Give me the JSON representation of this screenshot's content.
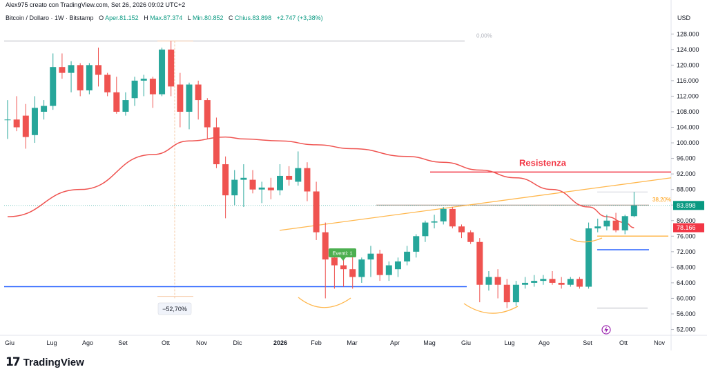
{
  "header": {
    "author_line": "Alex975 creato con TradingView.com, Set 26, 2026 09:02 UTC+2"
  },
  "legend": {
    "symbol": "Bitcoin / Dollaro · 1W · Bitstamp",
    "open_label": "O",
    "open_text": "Aper.81.152",
    "high_label": "H",
    "high_text": "Max.87.374",
    "low_label": "L",
    "low_text": "Min.80.852",
    "close_label": "C",
    "close_text": "Chius.83.898",
    "change_text": "+2.747 (+3,38%)"
  },
  "axis": {
    "currency": "USD"
  },
  "footer": {
    "brand": "TradingView",
    "logo_icon": "tradingview-logo-icon"
  },
  "colors": {
    "up": "#26a69a",
    "down": "#ef5350",
    "ma": "#ef5350",
    "support": "#2962ff",
    "resistance": "#f23645",
    "trendline": "#ffb74d",
    "price_tag": "#089981",
    "ma_tag": "#f23645",
    "event_flag": "#4caf50"
  },
  "annotations": {
    "resistance_label": "Resistenza",
    "drawdown_label": "−52,70%",
    "fib_zero_label": "0,00%",
    "fib_382_label": "38,20%",
    "event_label": "Eventi: 1",
    "current_price_tag": "83.898",
    "ma_value_tag": "78.166"
  },
  "chart_data": {
    "type": "candlestick",
    "title": "Bitcoin / Dollaro · 1W · Bitstamp",
    "ylabel": "USD",
    "ylim": [
      50000,
      130000
    ],
    "y_ticks": [
      52000,
      56000,
      60000,
      64000,
      68000,
      72000,
      76000,
      80000,
      84000,
      88000,
      92000,
      96000,
      100000,
      104000,
      108000,
      112000,
      116000,
      120000,
      124000,
      128000
    ],
    "y_tick_labels": [
      "52.000",
      "56.000",
      "60.000",
      "64.000",
      "68.000",
      "72.000",
      "76.000",
      "80.000",
      "84.000",
      "88.000",
      "92.000",
      "96.000",
      "100.000",
      "104.000",
      "108.000",
      "112.000",
      "116.000",
      "120.000",
      "124.000",
      "128.000"
    ],
    "x_labels": [
      "Giu",
      "Lug",
      "Ago",
      "Set",
      "Ott",
      "Nov",
      "Dic",
      "2026",
      "Feb",
      "Mar",
      "Apr",
      "Mag",
      "Giu",
      "Lug",
      "Ago",
      "Set",
      "Ott",
      "Nov"
    ],
    "candles": [
      {
        "o": 106000,
        "h": 111000,
        "l": 101000,
        "c": 106000
      },
      {
        "o": 106000,
        "h": 112000,
        "l": 103000,
        "c": 104000
      },
      {
        "o": 107000,
        "h": 110000,
        "l": 98500,
        "c": 101500
      },
      {
        "o": 102000,
        "h": 112000,
        "l": 100000,
        "c": 109000
      },
      {
        "o": 108000,
        "h": 111000,
        "l": 106000,
        "c": 109500
      },
      {
        "o": 109500,
        "h": 123000,
        "l": 108500,
        "c": 119500
      },
      {
        "o": 119500,
        "h": 123000,
        "l": 116500,
        "c": 118000
      },
      {
        "o": 118000,
        "h": 121000,
        "l": 113000,
        "c": 120000
      },
      {
        "o": 120000,
        "h": 120500,
        "l": 112000,
        "c": 113500
      },
      {
        "o": 113500,
        "h": 120500,
        "l": 112500,
        "c": 120000
      },
      {
        "o": 120000,
        "h": 124500,
        "l": 114500,
        "c": 117500
      },
      {
        "o": 117500,
        "h": 118000,
        "l": 112000,
        "c": 113000
      },
      {
        "o": 113000,
        "h": 117000,
        "l": 107500,
        "c": 108000
      },
      {
        "o": 108000,
        "h": 113000,
        "l": 107000,
        "c": 111000
      },
      {
        "o": 111500,
        "h": 117000,
        "l": 109500,
        "c": 116000
      },
      {
        "o": 116000,
        "h": 117500,
        "l": 112000,
        "c": 116500
      },
      {
        "o": 116500,
        "h": 117000,
        "l": 109000,
        "c": 112500
      },
      {
        "o": 112500,
        "h": 124500,
        "l": 112000,
        "c": 124000
      },
      {
        "o": 124000,
        "h": 126200,
        "l": 112000,
        "c": 114500
      },
      {
        "o": 115000,
        "h": 118000,
        "l": 104000,
        "c": 108000
      },
      {
        "o": 108000,
        "h": 115500,
        "l": 103500,
        "c": 115000
      },
      {
        "o": 115000,
        "h": 116000,
        "l": 106000,
        "c": 111000
      },
      {
        "o": 111000,
        "h": 111500,
        "l": 101000,
        "c": 104000
      },
      {
        "o": 104000,
        "h": 106500,
        "l": 93500,
        "c": 94500
      },
      {
        "o": 94500,
        "h": 96500,
        "l": 80600,
        "c": 86500
      },
      {
        "o": 86500,
        "h": 93000,
        "l": 84000,
        "c": 90500
      },
      {
        "o": 90500,
        "h": 94500,
        "l": 83500,
        "c": 91000
      },
      {
        "o": 90500,
        "h": 93000,
        "l": 87000,
        "c": 88000
      },
      {
        "o": 88000,
        "h": 90000,
        "l": 84500,
        "c": 88500
      },
      {
        "o": 88500,
        "h": 91000,
        "l": 85500,
        "c": 87800
      },
      {
        "o": 87800,
        "h": 94500,
        "l": 86500,
        "c": 91500
      },
      {
        "o": 91500,
        "h": 94000,
        "l": 89000,
        "c": 90500
      },
      {
        "o": 90000,
        "h": 97800,
        "l": 89000,
        "c": 93500
      },
      {
        "o": 93500,
        "h": 95000,
        "l": 85000,
        "c": 87500
      },
      {
        "o": 87500,
        "h": 90000,
        "l": 75000,
        "c": 77000
      },
      {
        "o": 77000,
        "h": 79500,
        "l": 60000,
        "c": 70000
      },
      {
        "o": 70500,
        "h": 72000,
        "l": 62500,
        "c": 68500
      },
      {
        "o": 68500,
        "h": 71500,
        "l": 63000,
        "c": 67500
      },
      {
        "o": 67500,
        "h": 71500,
        "l": 62500,
        "c": 65500
      },
      {
        "o": 65500,
        "h": 70500,
        "l": 64000,
        "c": 70000
      },
      {
        "o": 70000,
        "h": 73500,
        "l": 65500,
        "c": 71500
      },
      {
        "o": 71500,
        "h": 72500,
        "l": 64500,
        "c": 66000
      },
      {
        "o": 66000,
        "h": 69500,
        "l": 64500,
        "c": 68500
      },
      {
        "o": 67500,
        "h": 70500,
        "l": 65500,
        "c": 69500
      },
      {
        "o": 69500,
        "h": 73500,
        "l": 68500,
        "c": 72000
      },
      {
        "o": 72000,
        "h": 76500,
        "l": 70500,
        "c": 76000
      },
      {
        "o": 76000,
        "h": 80000,
        "l": 74500,
        "c": 79500
      },
      {
        "o": 79500,
        "h": 81500,
        "l": 78000,
        "c": 79800
      },
      {
        "o": 79800,
        "h": 83500,
        "l": 79000,
        "c": 83000
      },
      {
        "o": 83000,
        "h": 83500,
        "l": 78000,
        "c": 78500
      },
      {
        "o": 78500,
        "h": 79000,
        "l": 75500,
        "c": 77000
      },
      {
        "o": 77000,
        "h": 77500,
        "l": 74000,
        "c": 74500
      },
      {
        "o": 74500,
        "h": 75500,
        "l": 59000,
        "c": 63500
      },
      {
        "o": 63500,
        "h": 67000,
        "l": 62000,
        "c": 65500
      },
      {
        "o": 65500,
        "h": 67500,
        "l": 60000,
        "c": 63500
      },
      {
        "o": 63500,
        "h": 65000,
        "l": 57500,
        "c": 59000
      },
      {
        "o": 59000,
        "h": 64500,
        "l": 58000,
        "c": 63500
      },
      {
        "o": 63500,
        "h": 65500,
        "l": 62500,
        "c": 64000
      },
      {
        "o": 64000,
        "h": 66000,
        "l": 63000,
        "c": 64500
      },
      {
        "o": 64500,
        "h": 66000,
        "l": 63500,
        "c": 65000
      },
      {
        "o": 65000,
        "h": 67000,
        "l": 63500,
        "c": 64000
      },
      {
        "o": 64000,
        "h": 65500,
        "l": 62500,
        "c": 63500
      },
      {
        "o": 63500,
        "h": 65500,
        "l": 63000,
        "c": 65000
      },
      {
        "o": 65000,
        "h": 65500,
        "l": 62500,
        "c": 63000
      },
      {
        "o": 63000,
        "h": 79500,
        "l": 62500,
        "c": 78000
      },
      {
        "o": 78000,
        "h": 80500,
        "l": 77000,
        "c": 78500
      },
      {
        "o": 78500,
        "h": 81500,
        "l": 77500,
        "c": 80000
      },
      {
        "o": 80000,
        "h": 82000,
        "l": 77000,
        "c": 77500
      },
      {
        "o": 77500,
        "h": 81500,
        "l": 76500,
        "c": 81152
      },
      {
        "o": 81152,
        "h": 87374,
        "l": 80852,
        "c": 83898
      }
    ],
    "moving_average": [
      [
        0,
        81000
      ],
      [
        8,
        88000
      ],
      [
        16,
        97000
      ],
      [
        20,
        100500
      ],
      [
        24,
        101500
      ],
      [
        26,
        101000
      ],
      [
        30,
        100500
      ],
      [
        34,
        99500
      ],
      [
        38,
        98500
      ],
      [
        44,
        96500
      ],
      [
        48,
        95000
      ],
      [
        52,
        93000
      ],
      [
        56,
        91000
      ],
      [
        60,
        88000
      ],
      [
        64,
        83500
      ],
      [
        66,
        81000
      ],
      [
        68,
        79500
      ],
      [
        69,
        78166
      ]
    ],
    "support_level": 63000,
    "resistance_level": 92500,
    "trendline": {
      "from": [
        33,
        77500
      ],
      "to": [
        71,
        91000
      ]
    },
    "fib_382_level": 84000,
    "fib_0_level": 126200,
    "orange_short_level": 76000,
    "blue_short_level": 72500,
    "gray_level": 57500,
    "drawdown_pct": -52.7,
    "current_price": 83898,
    "ma_value": 78166
  }
}
